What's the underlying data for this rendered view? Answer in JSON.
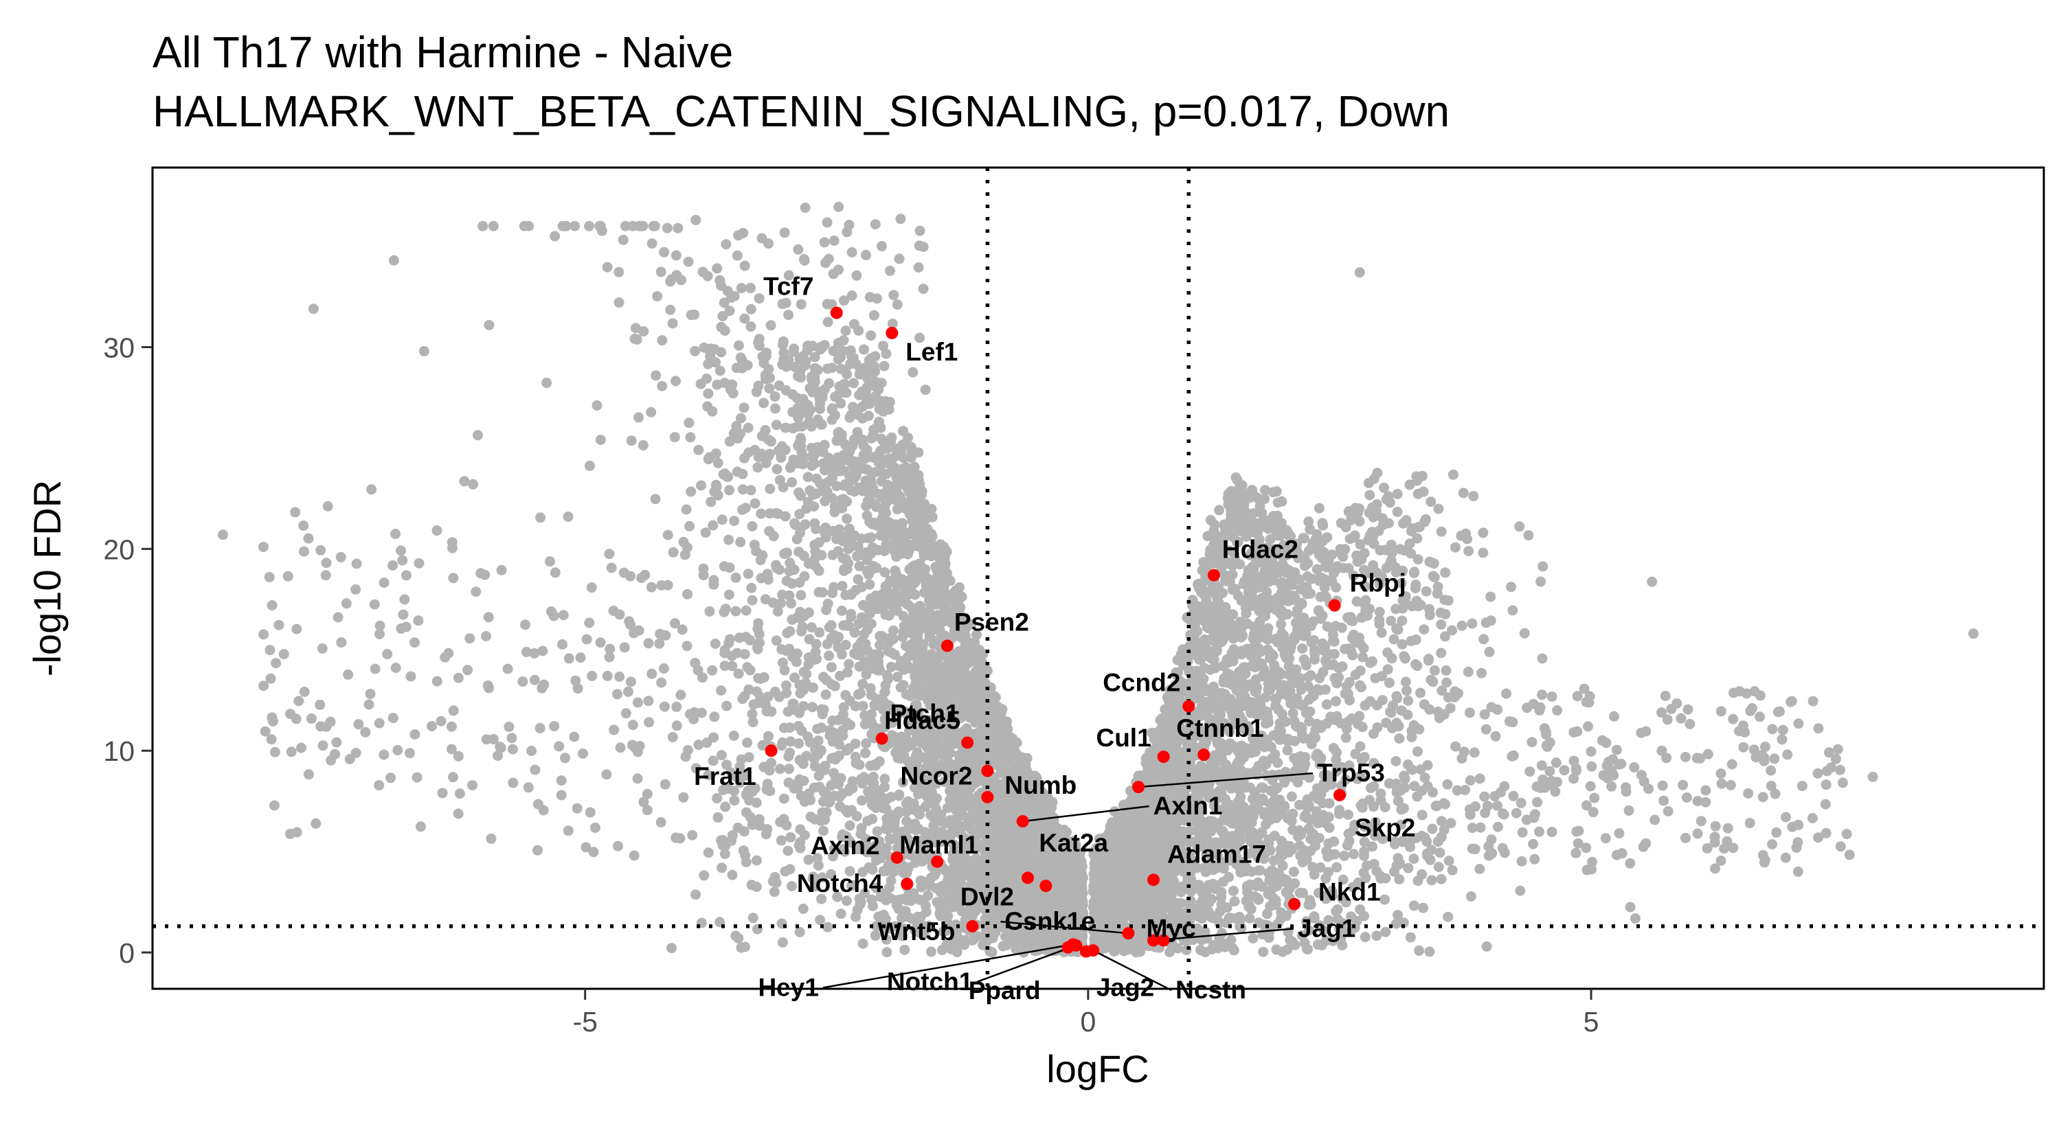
{
  "chart_data": {
    "type": "scatter",
    "title": "All Th17 with Harmine - Naive",
    "subtitle": "HALLMARK_WNT_BETA_CATENIN_SIGNALING, p=0.017, Down",
    "xlabel": "logFC",
    "ylabel": "-log10 FDR",
    "xlim": [
      -9.3,
      9.5
    ],
    "ylim": [
      -1.8,
      38.9
    ],
    "x_ticks": [
      -5,
      0,
      5
    ],
    "y_ticks": [
      0,
      10,
      20,
      30
    ],
    "vlines": [
      -1,
      1
    ],
    "hline": 1.3,
    "grid": false,
    "background_color": "#b3b3b3",
    "highlight_color": "#ff0000",
    "highlighted": [
      {
        "name": "Tcf7",
        "x": -2.5,
        "y": 31.7
      },
      {
        "name": "Lef1",
        "x": -1.95,
        "y": 30.7
      },
      {
        "name": "Hdac2",
        "x": 1.25,
        "y": 18.7
      },
      {
        "name": "Rbpj",
        "x": 2.45,
        "y": 17.2
      },
      {
        "name": "Psen2",
        "x": -1.4,
        "y": 15.2
      },
      {
        "name": "Ccnd2",
        "x": 1.0,
        "y": 12.2
      },
      {
        "name": "Ptch1",
        "x": -2.05,
        "y": 10.6
      },
      {
        "name": "Hdac5",
        "x": -1.2,
        "y": 10.4
      },
      {
        "name": "Frat1",
        "x": -3.15,
        "y": 10.0
      },
      {
        "name": "Cul1",
        "x": 0.75,
        "y": 9.7
      },
      {
        "name": "Ctnnb1",
        "x": 1.15,
        "y": 9.8
      },
      {
        "name": "Ncor2",
        "x": -1.0,
        "y": 9.0
      },
      {
        "name": "Trp53",
        "x": 0.5,
        "y": 8.2
      },
      {
        "name": "Skp2",
        "x": 2.5,
        "y": 7.8
      },
      {
        "name": "Numb",
        "x": -1.0,
        "y": 7.7
      },
      {
        "name": "Axin1",
        "x": -0.65,
        "y": 6.5
      },
      {
        "name": "Axin2",
        "x": -1.9,
        "y": 4.7
      },
      {
        "name": "Maml1",
        "x": -1.5,
        "y": 4.5
      },
      {
        "name": "Adam17",
        "x": 0.65,
        "y": 3.6
      },
      {
        "name": "Kat2a",
        "x": -0.42,
        "y": 3.3
      },
      {
        "name": "Dvl2",
        "x": -0.6,
        "y": 3.7
      },
      {
        "name": "Notch4",
        "x": -1.8,
        "y": 3.4
      },
      {
        "name": "Nkd1",
        "x": 2.05,
        "y": 2.4
      },
      {
        "name": "Wnt5b",
        "x": -1.15,
        "y": 1.3
      },
      {
        "name": "Csnk1e",
        "x": 0.4,
        "y": 0.95
      },
      {
        "name": "Myc",
        "x": 0.75,
        "y": 0.6
      },
      {
        "name": "Jag1",
        "x": 0.65,
        "y": 0.6
      },
      {
        "name": "Hey1",
        "x": -0.15,
        "y": 0.4
      },
      {
        "name": "Notch1",
        "x": -0.12,
        "y": 0.35
      },
      {
        "name": "Ppard",
        "x": -0.2,
        "y": 0.25
      },
      {
        "name": "Jag2",
        "x": -0.02,
        "y": 0.05
      },
      {
        "name": "Ncstn",
        "x": 0.05,
        "y": 0.1
      }
    ]
  }
}
